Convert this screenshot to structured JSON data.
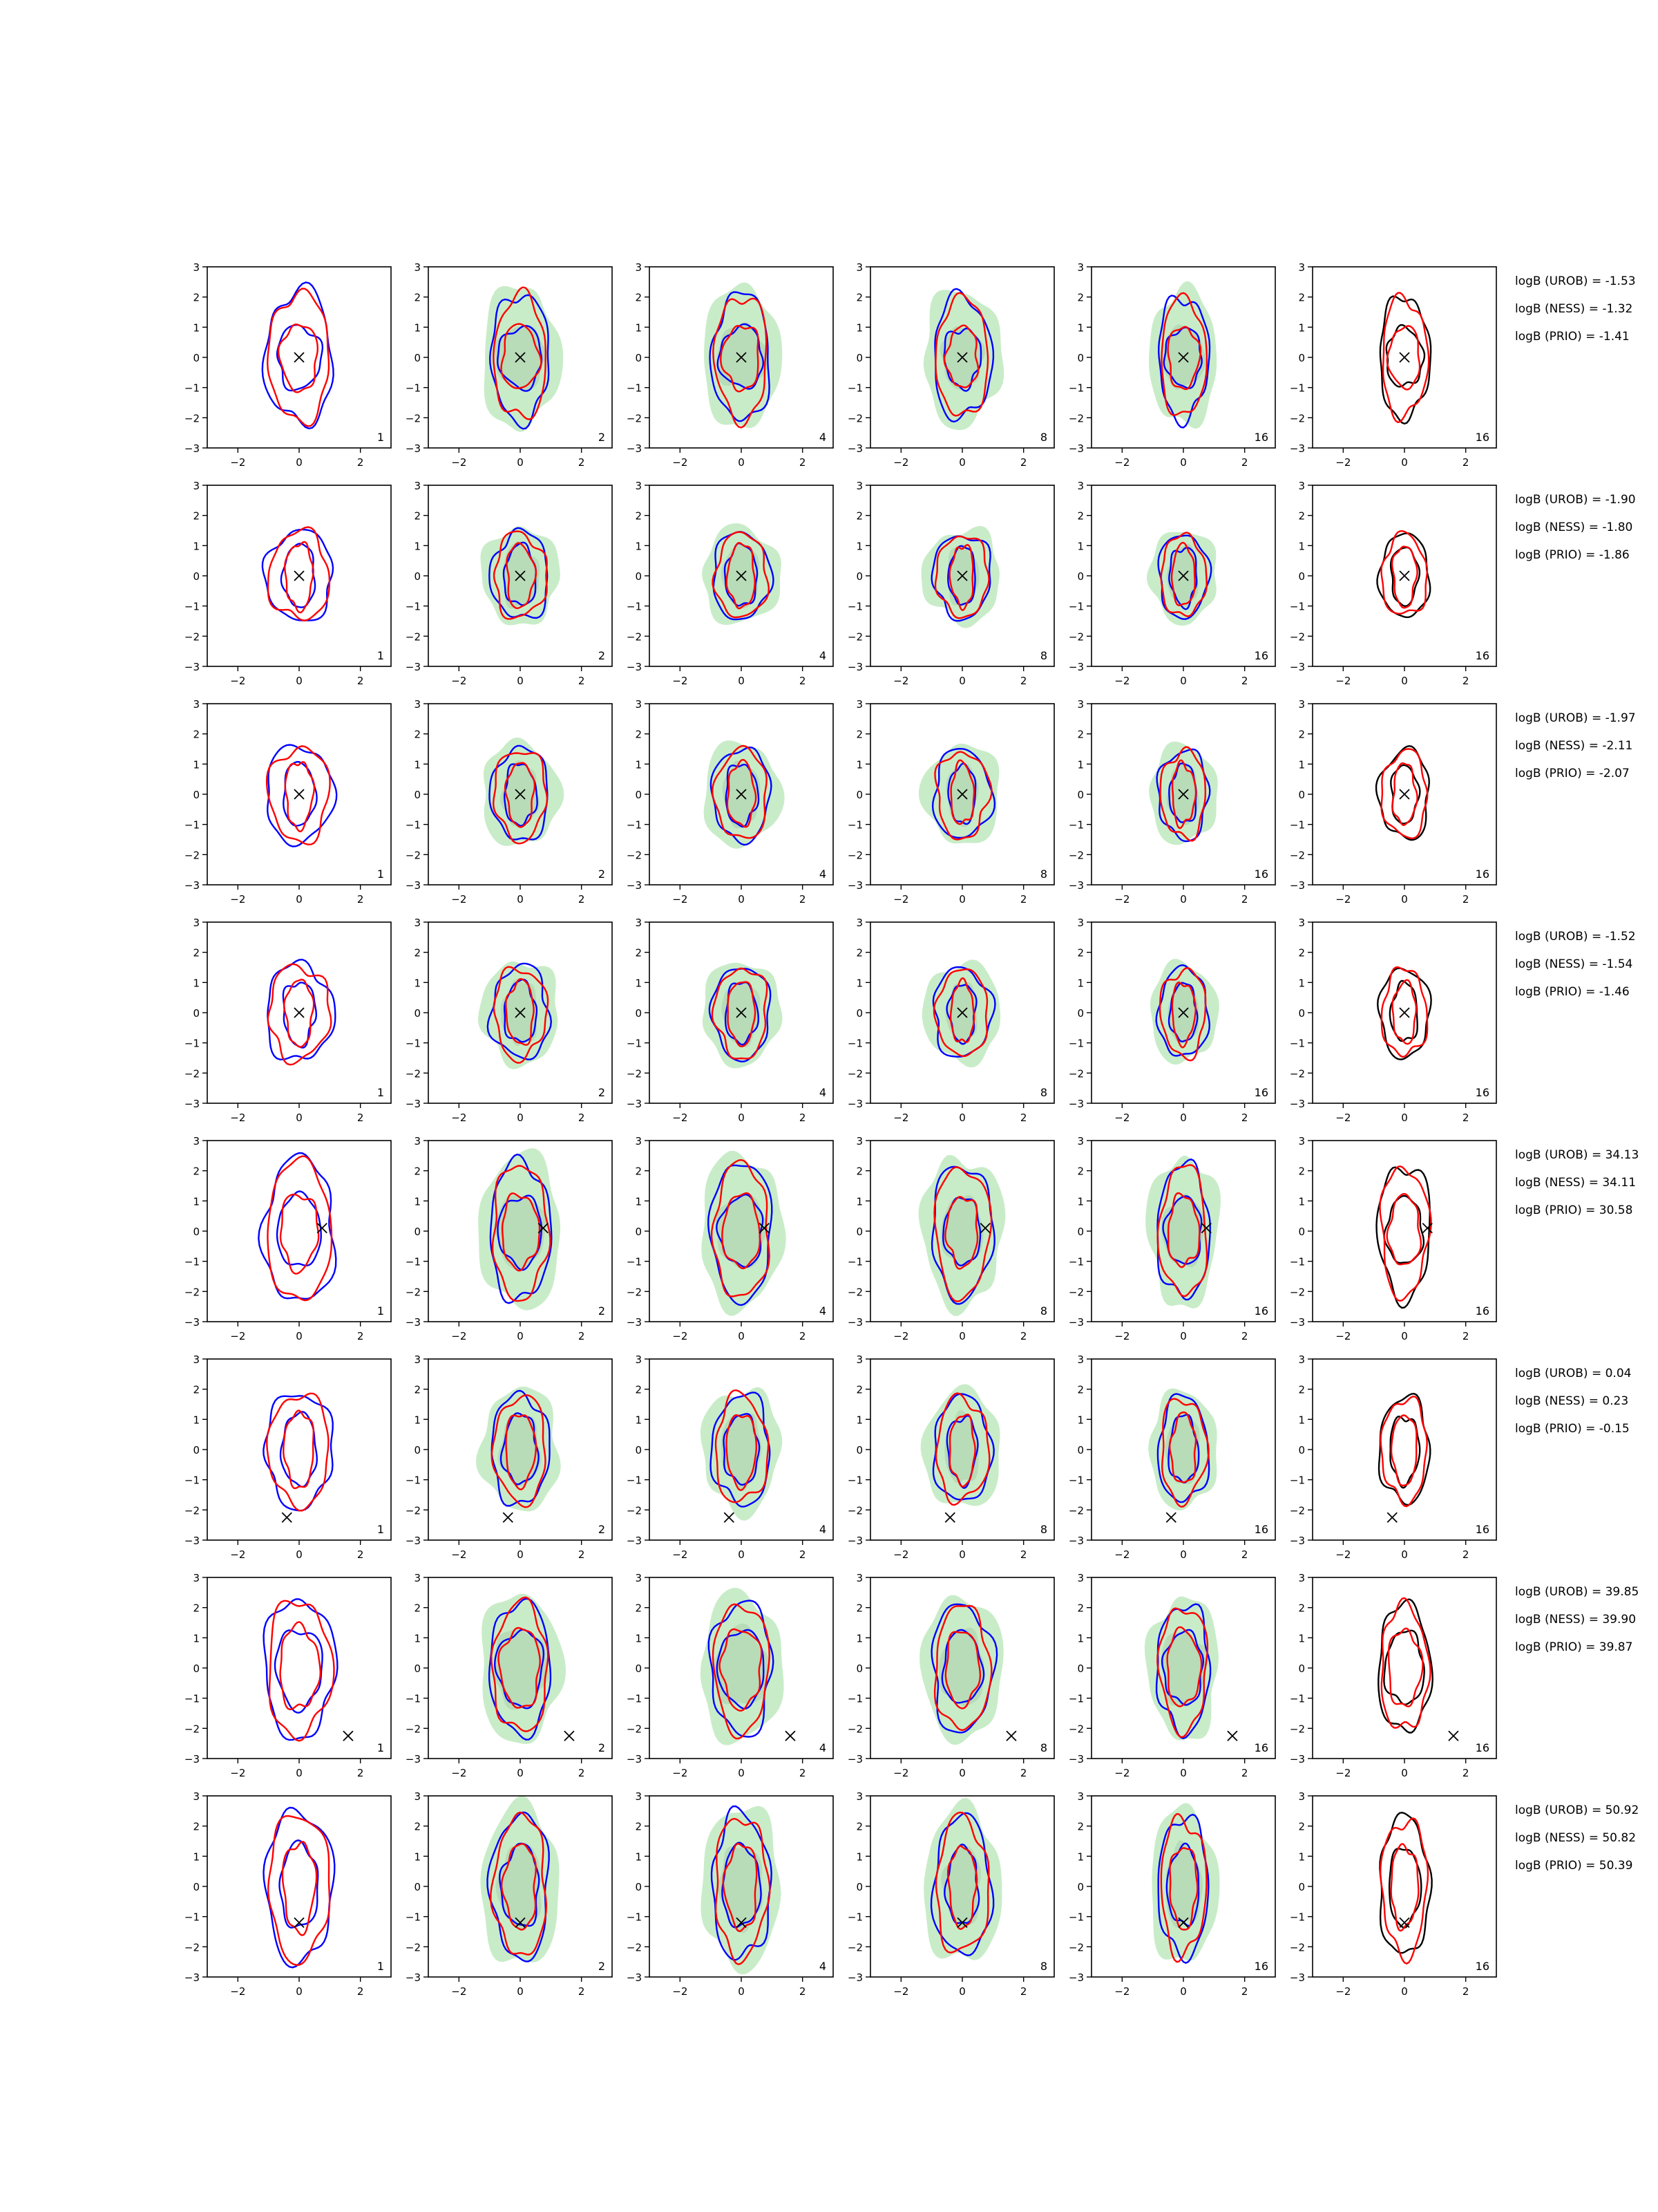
{
  "axes": {
    "xticks": [
      -2,
      0,
      2
    ],
    "yticks": [
      -3,
      -2,
      -1,
      0,
      1,
      2,
      3
    ],
    "xlim": [
      -3,
      3
    ],
    "ylim": [
      -3,
      3
    ]
  },
  "chart_data": {
    "type": "contour-grid",
    "rows": 8,
    "cols": 6,
    "colors": {
      "blue": "#0000ff",
      "red": "#ff0000",
      "black": "#000000",
      "fill": "#c8ecc8",
      "inner_fill": "#b8dbb8"
    },
    "col_styles": [
      "blue-red",
      "blue-red-fill",
      "blue-red-fill",
      "blue-red-fill",
      "blue-red-fill",
      "black-red"
    ],
    "col_labels": [
      "1",
      "2",
      "4",
      "8",
      "16",
      "16"
    ],
    "panel_rows": [
      {
        "marker": [
          0,
          0
        ],
        "outer": [
          2.2,
          1.05
        ],
        "inner": [
          1.05,
          0.75
        ],
        "logB": [
          "logB (UROB) = -1.53",
          "logB (NESS) = -1.32",
          "logB (PRIO) = -1.41"
        ]
      },
      {
        "marker": [
          0,
          0
        ],
        "outer": [
          1.5,
          1.05
        ],
        "inner": [
          1.05,
          0.55
        ],
        "logB": [
          "logB (UROB) = -1.90",
          "logB (NESS) = -1.80",
          "logB (PRIO) = -1.86"
        ]
      },
      {
        "marker": [
          0,
          0
        ],
        "outer": [
          1.6,
          1.05
        ],
        "inner": [
          1.05,
          0.55
        ],
        "logB": [
          "logB (UROB) = -1.97",
          "logB (NESS) = -2.11",
          "logB (PRIO) = -2.07"
        ]
      },
      {
        "marker": [
          0,
          0
        ],
        "outer": [
          1.6,
          1.05
        ],
        "inner": [
          1.05,
          0.55
        ],
        "logB": [
          "logB (UROB) = -1.52",
          "logB (NESS) = -1.54",
          "logB (PRIO) = -1.46"
        ]
      },
      {
        "marker": [
          0.75,
          0.1
        ],
        "outer": [
          2.4,
          1.1
        ],
        "inner": [
          1.2,
          0.75
        ],
        "logB": [
          "logB (UROB) = 34.13",
          "logB (NESS) = 34.11",
          "logB (PRIO) = 30.58"
        ]
      },
      {
        "marker": [
          -0.4,
          -2.25
        ],
        "outer": [
          1.9,
          1.05
        ],
        "inner": [
          1.2,
          0.6
        ],
        "logB": [
          "logB (UROB) = 0.04",
          "logB (NESS) = 0.23",
          "logB (PRIO) = -0.15"
        ]
      },
      {
        "marker": [
          1.6,
          -2.25
        ],
        "outer": [
          2.3,
          1.1
        ],
        "inner": [
          1.3,
          0.8
        ],
        "logB": [
          "logB (UROB) = 39.85",
          "logB (NESS) = 39.90",
          "logB (PRIO) = 39.87"
        ]
      },
      {
        "marker": [
          0,
          -1.2
        ],
        "outer": [
          2.5,
          1.05
        ],
        "inner": [
          1.4,
          0.65
        ],
        "logB": [
          "logB (UROB) = 50.92",
          "logB (NESS) = 50.82",
          "logB (PRIO) = 50.39"
        ]
      }
    ]
  }
}
